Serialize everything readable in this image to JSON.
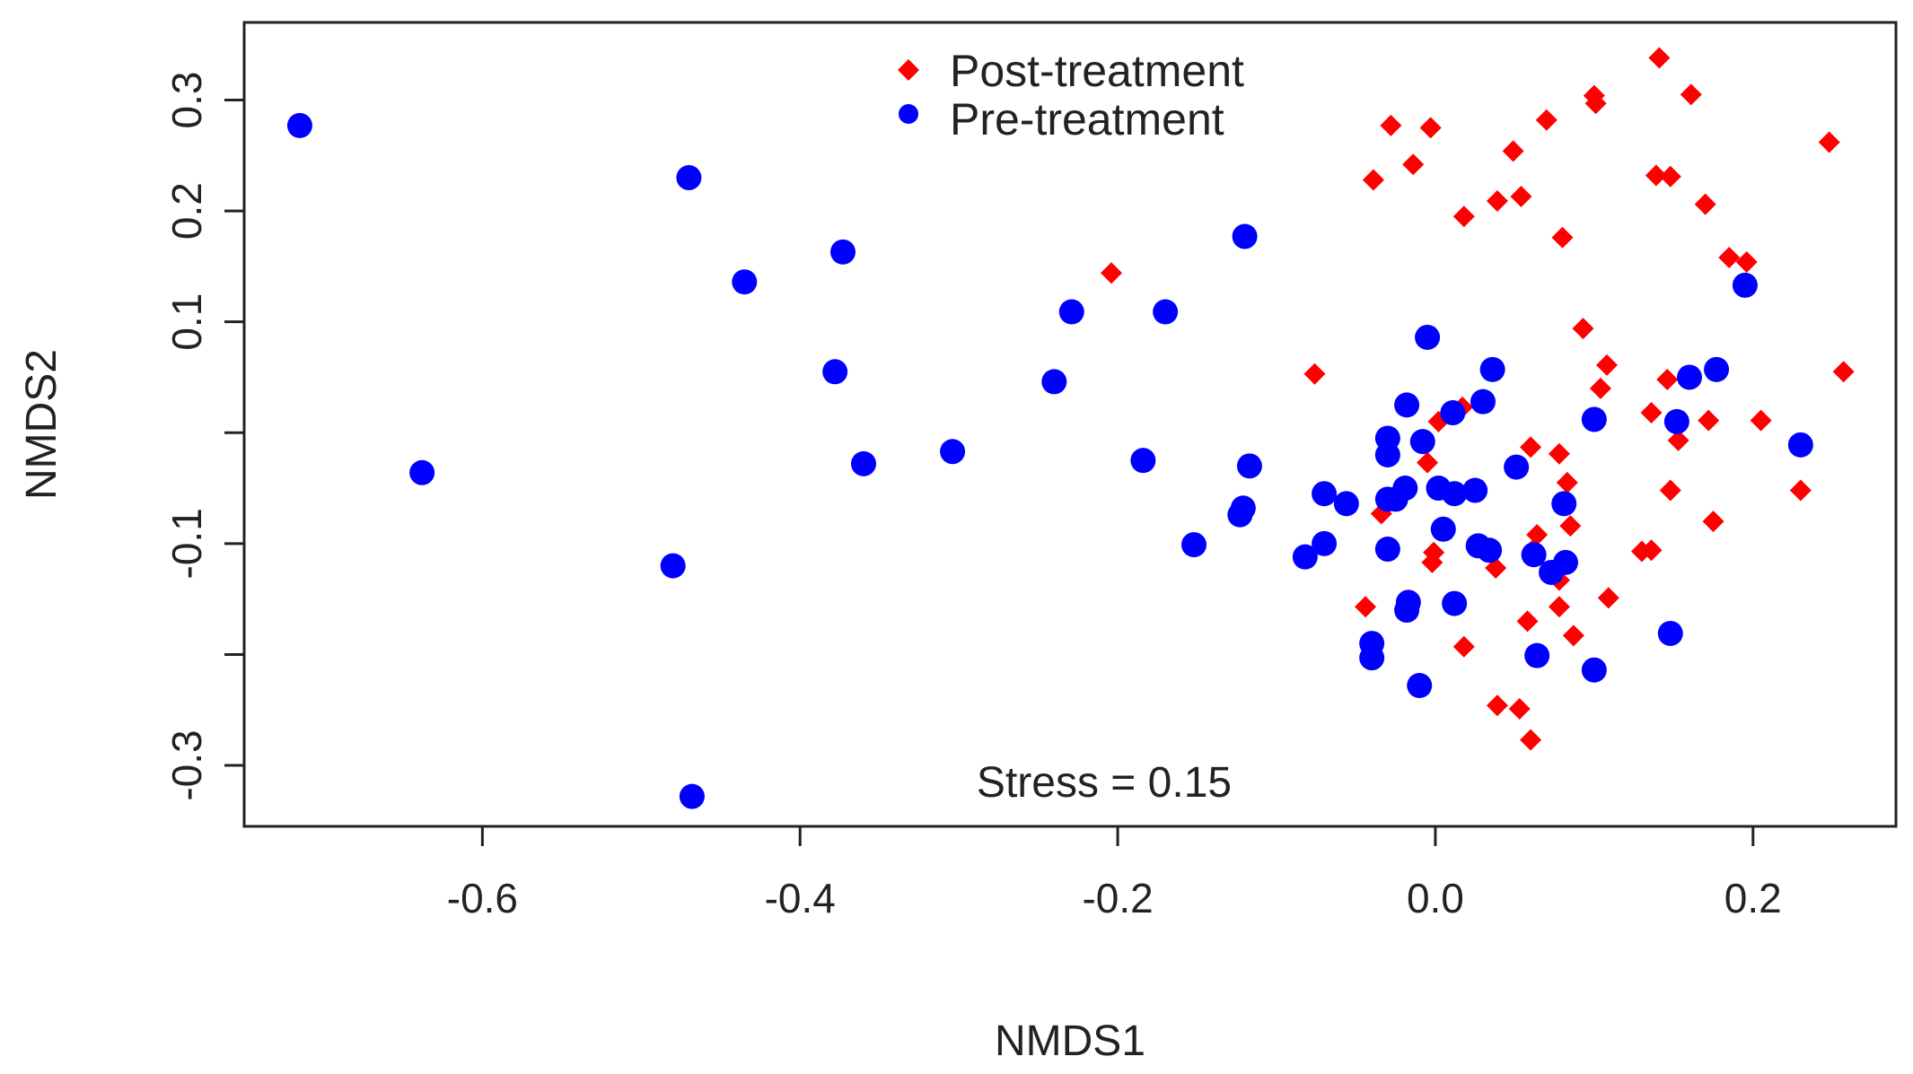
{
  "chart_data": {
    "type": "scatter",
    "title": "",
    "xlabel": "NMDS1",
    "ylabel": "NMDS2",
    "xlim": [
      -0.75,
      0.29
    ],
    "ylim": [
      -0.355,
      0.37
    ],
    "xticks": [
      -0.6,
      -0.4,
      -0.2,
      0.0,
      0.2
    ],
    "xtick_labels": [
      "-0.6",
      "-0.4",
      "-0.2",
      "0.0",
      "0.2"
    ],
    "yticks": [
      -0.3,
      -0.2,
      -0.1,
      0.0,
      0.1,
      0.2,
      0.3
    ],
    "ytick_labels": [
      "-0.3",
      "",
      "-0.1",
      "",
      "0.1",
      "0.2",
      "0.3"
    ],
    "legend_position": "top-center",
    "annotation": "Stress = 0.15",
    "series": [
      {
        "name": "Post-treatment",
        "color": "#ff0000",
        "marker": "diamond",
        "points": [
          [
            0.141,
            0.338
          ],
          [
            0.1,
            0.304
          ],
          [
            0.161,
            0.305
          ],
          [
            0.07,
            0.282
          ],
          [
            -0.028,
            0.277
          ],
          [
            -0.003,
            0.275
          ],
          [
            0.101,
            0.297
          ],
          [
            0.248,
            0.262
          ],
          [
            -0.014,
            0.242
          ],
          [
            0.049,
            0.254
          ],
          [
            -0.039,
            0.228
          ],
          [
            0.139,
            0.232
          ],
          [
            0.148,
            0.231
          ],
          [
            0.039,
            0.209
          ],
          [
            0.054,
            0.213
          ],
          [
            0.17,
            0.206
          ],
          [
            0.018,
            0.195
          ],
          [
            0.08,
            0.176
          ],
          [
            0.185,
            0.158
          ],
          [
            0.196,
            0.154
          ],
          [
            -0.204,
            0.144
          ],
          [
            0.093,
            0.094
          ],
          [
            0.108,
            0.061
          ],
          [
            0.257,
            0.055
          ],
          [
            -0.076,
            0.053
          ],
          [
            0.146,
            0.048
          ],
          [
            0.104,
            0.04
          ],
          [
            0.136,
            0.018
          ],
          [
            0.172,
            0.011
          ],
          [
            0.205,
            0.011
          ],
          [
            0.017,
            0.023
          ],
          [
            0.002,
            0.01
          ],
          [
            0.153,
            -0.007
          ],
          [
            0.06,
            -0.013
          ],
          [
            0.078,
            -0.019
          ],
          [
            -0.005,
            -0.027
          ],
          [
            0.083,
            -0.045
          ],
          [
            0.148,
            -0.052
          ],
          [
            0.23,
            -0.052
          ],
          [
            -0.034,
            -0.073
          ],
          [
            0.085,
            -0.084
          ],
          [
            0.175,
            -0.08
          ],
          [
            0.064,
            -0.092
          ],
          [
            0.062,
            -0.105
          ],
          [
            0.13,
            -0.107
          ],
          [
            0.136,
            -0.106
          ],
          [
            -0.001,
            -0.108
          ],
          [
            -0.002,
            -0.117
          ],
          [
            0.038,
            -0.122
          ],
          [
            0.078,
            -0.133
          ],
          [
            0.109,
            -0.149
          ],
          [
            -0.044,
            -0.157
          ],
          [
            0.078,
            -0.157
          ],
          [
            0.058,
            -0.17
          ],
          [
            0.087,
            -0.183
          ],
          [
            0.018,
            -0.193
          ],
          [
            0.039,
            -0.246
          ],
          [
            0.053,
            -0.249
          ],
          [
            0.06,
            -0.277
          ]
        ]
      },
      {
        "name": "Pre-treatment",
        "color": "#0000ff",
        "marker": "circle",
        "points": [
          [
            -0.715,
            0.277
          ],
          [
            -0.47,
            0.23
          ],
          [
            -0.373,
            0.163
          ],
          [
            -0.435,
            0.136
          ],
          [
            -0.12,
            0.177
          ],
          [
            -0.229,
            0.109
          ],
          [
            -0.17,
            0.109
          ],
          [
            -0.378,
            0.055
          ],
          [
            -0.24,
            0.046
          ],
          [
            -0.36,
            -0.028
          ],
          [
            -0.304,
            -0.017
          ],
          [
            -0.184,
            -0.025
          ],
          [
            -0.117,
            -0.03
          ],
          [
            -0.638,
            -0.036
          ],
          [
            -0.152,
            -0.101
          ],
          [
            -0.121,
            -0.068
          ],
          [
            -0.123,
            -0.074
          ],
          [
            -0.082,
            -0.112
          ],
          [
            -0.07,
            -0.055
          ],
          [
            -0.07,
            -0.1
          ],
          [
            -0.056,
            -0.064
          ],
          [
            -0.03,
            -0.06
          ],
          [
            -0.025,
            -0.06
          ],
          [
            -0.019,
            -0.05
          ],
          [
            -0.03,
            -0.02
          ],
          [
            -0.03,
            -0.005
          ],
          [
            -0.03,
            -0.105
          ],
          [
            -0.018,
            0.025
          ],
          [
            -0.008,
            -0.008
          ],
          [
            -0.005,
            0.086
          ],
          [
            0.002,
            -0.05
          ],
          [
            0.012,
            -0.055
          ],
          [
            0.025,
            -0.052
          ],
          [
            0.005,
            -0.087
          ],
          [
            0.027,
            -0.102
          ],
          [
            0.034,
            -0.106
          ],
          [
            0.011,
            0.018
          ],
          [
            0.03,
            0.028
          ],
          [
            0.036,
            0.057
          ],
          [
            0.051,
            -0.031
          ],
          [
            -0.017,
            -0.153
          ],
          [
            -0.018,
            -0.16
          ],
          [
            0.012,
            -0.154
          ],
          [
            -0.04,
            -0.19
          ],
          [
            -0.04,
            -0.203
          ],
          [
            -0.01,
            -0.228
          ],
          [
            0.064,
            -0.201
          ],
          [
            0.1,
            -0.214
          ],
          [
            0.062,
            -0.11
          ],
          [
            0.073,
            -0.126
          ],
          [
            0.082,
            -0.117
          ],
          [
            0.081,
            -0.064
          ],
          [
            0.1,
            0.012
          ],
          [
            0.16,
            0.05
          ],
          [
            0.177,
            0.057
          ],
          [
            0.152,
            0.01
          ],
          [
            0.195,
            0.133
          ],
          [
            0.23,
            -0.011
          ],
          [
            0.148,
            -0.181
          ],
          [
            -0.468,
            -0.328
          ],
          [
            -0.48,
            -0.12
          ]
        ]
      }
    ]
  }
}
